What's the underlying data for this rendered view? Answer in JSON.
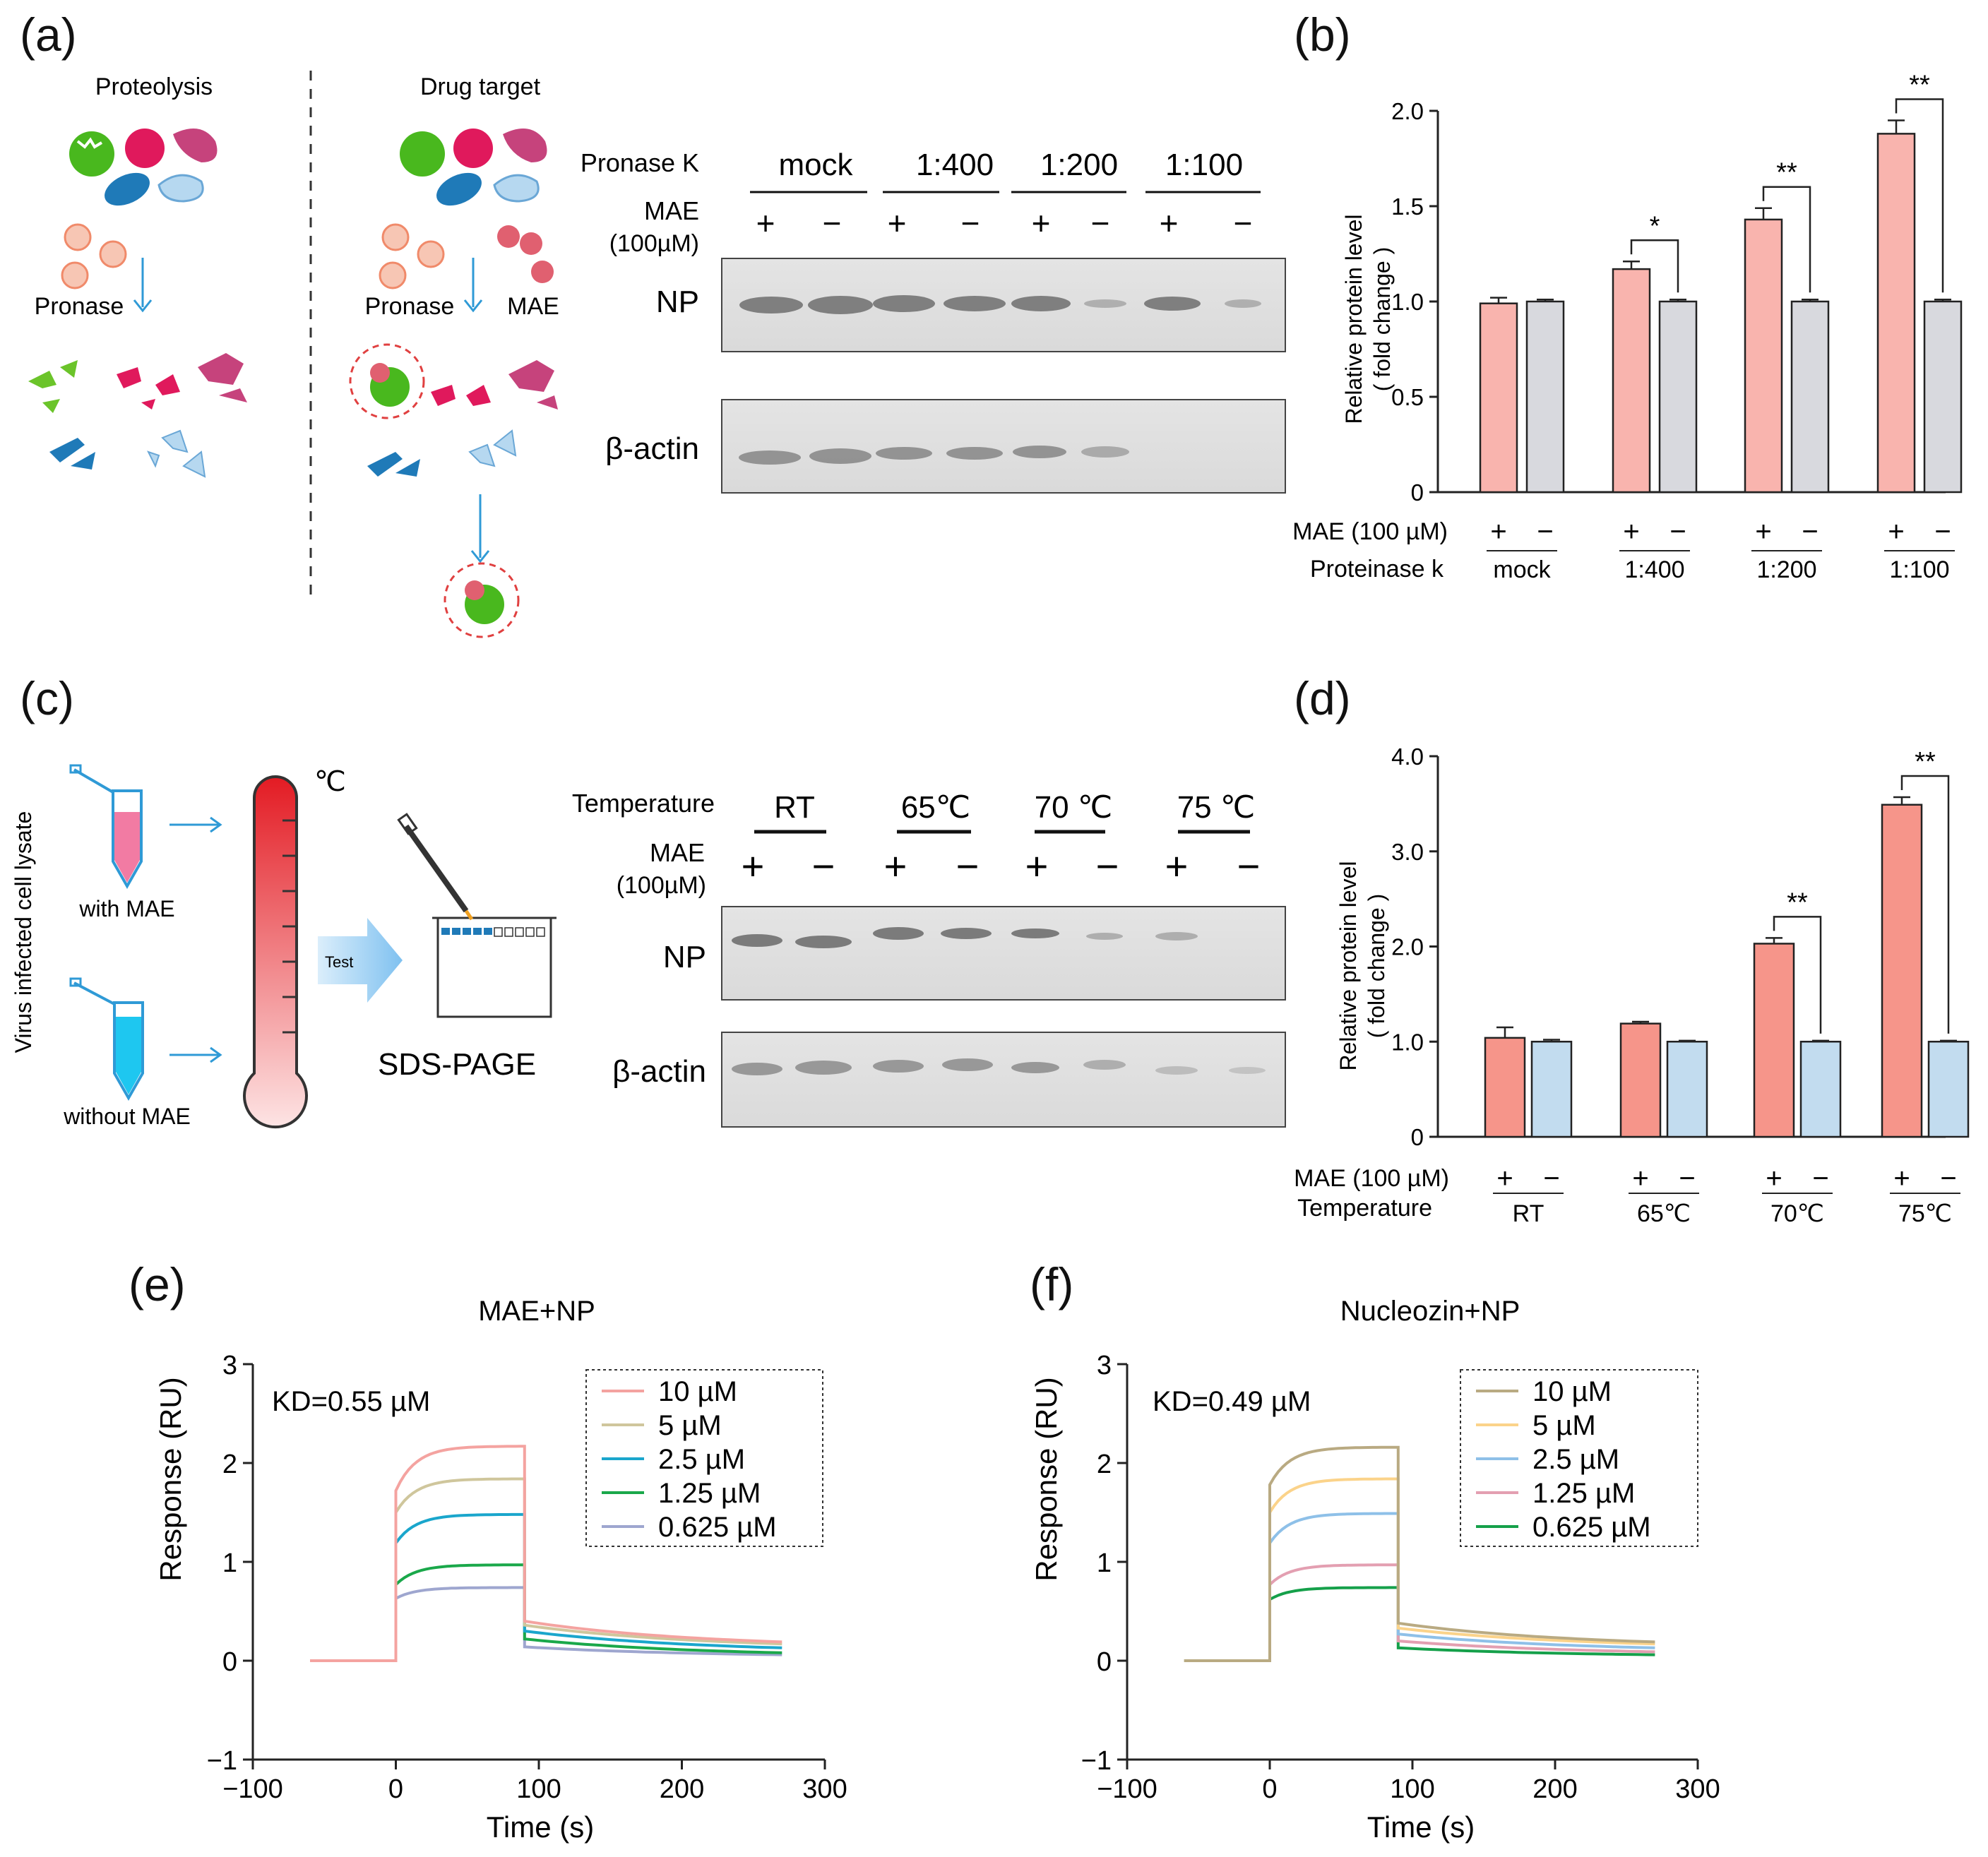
{
  "figure": {
    "panel_labels": [
      "(a)",
      "(b)",
      "(c)",
      "(d)",
      "(e)",
      "(f)"
    ]
  },
  "panel_a": {
    "proteolysis_title": "Proteolysis",
    "drug_target_title": "Drug target",
    "pronase_label_1": "Pronase",
    "pronase_label_2": "Pronase",
    "mae_label": "MAE"
  },
  "blot_a": {
    "row_pronase": "Pronase K",
    "row_mae": "MAE",
    "row_mae_conc": "(100µM)",
    "groups": [
      "mock",
      "1:400",
      "1:200",
      "1:100"
    ],
    "signs": [
      "+",
      "−",
      "+",
      "−",
      "+",
      "−",
      "+",
      "−"
    ],
    "band_np": "NP",
    "band_actin": "β-actin"
  },
  "panel_c": {
    "ylabel": "Virus infected cell lysate",
    "with": "with MAE",
    "without": "without MAE",
    "celsius": "℃",
    "test": "Test",
    "sds": "SDS-PAGE"
  },
  "blot_c": {
    "row_temp": "Temperature",
    "row_mae": "MAE",
    "row_mae_conc": "(100µM)",
    "groups": [
      "RT",
      "65℃",
      "70 ℃",
      "75 ℃"
    ],
    "signs": [
      "+",
      "−",
      "+",
      "−",
      "+",
      "−",
      "+",
      "−"
    ],
    "band_np": "NP",
    "band_actin": "β-actin"
  },
  "colors": {
    "pink_bar": "#f9b4ae",
    "gray_bar": "#d8d9de",
    "salmon_bar": "#f6958a",
    "blue_bar": "#c2dcef"
  },
  "chart_data": [
    {
      "id": "b",
      "type": "bar",
      "ylabel": "Relative protein level",
      "ylabel2": "( fold change )",
      "ylim": [
        0,
        2.0
      ],
      "yticks": [
        0,
        0.5,
        1.0,
        1.5,
        2.0
      ],
      "ytick_labels": [
        "0",
        "0.5",
        "1.0",
        "1.5",
        "2.0"
      ],
      "row1_label": "MAE (100 µM)",
      "row2_label": "Proteinase k",
      "categories": [
        "mock",
        "1:400",
        "1:200",
        "1:100"
      ],
      "signs": [
        "+",
        "−"
      ],
      "series": [
        {
          "name": "MAE +",
          "values": [
            0.99,
            1.17,
            1.43,
            1.88
          ],
          "errors": [
            0.03,
            0.04,
            0.06,
            0.07
          ]
        },
        {
          "name": "MAE −",
          "values": [
            1.0,
            1.0,
            1.0,
            1.0
          ],
          "errors": [
            0.01,
            0.01,
            0.01,
            0.01
          ]
        }
      ],
      "significance": [
        "",
        "*",
        "**",
        "**"
      ]
    },
    {
      "id": "d",
      "type": "bar",
      "ylabel": "Relative protein level",
      "ylabel2": "( fold change )",
      "ylim": [
        0,
        4.0
      ],
      "yticks": [
        0,
        1.0,
        2.0,
        3.0,
        4.0
      ],
      "ytick_labels": [
        "0",
        "1.0",
        "2.0",
        "3.0",
        "4.0"
      ],
      "row1_label": "MAE (100 µM)",
      "row2_label": "Temperature",
      "categories": [
        "RT",
        "65℃",
        "70℃",
        "75℃"
      ],
      "signs": [
        "+",
        "−"
      ],
      "series": [
        {
          "name": "MAE +",
          "values": [
            1.04,
            1.19,
            2.03,
            3.49
          ],
          "errors": [
            0.11,
            0.02,
            0.06,
            0.08
          ]
        },
        {
          "name": "MAE −",
          "values": [
            1.0,
            1.0,
            1.0,
            1.0
          ],
          "errors": [
            0.02,
            0.01,
            0.01,
            0.01
          ]
        }
      ],
      "significance": [
        "",
        "",
        "**",
        "**"
      ]
    },
    {
      "id": "e",
      "type": "line",
      "title": "MAE+NP",
      "annotation": "KD=0.55 µM",
      "xlabel": "Time (s)",
      "ylabel": "Response (RU)",
      "xlim": [
        -100,
        300
      ],
      "ylim": [
        -1,
        3
      ],
      "xticks": [
        -100,
        0,
        100,
        200,
        300
      ],
      "xtick_labels": [
        "−100",
        "0",
        "100",
        "200",
        "300"
      ],
      "yticks": [
        -1,
        0,
        1,
        2,
        3
      ],
      "ytick_labels": [
        "−1",
        "0",
        "1",
        "2",
        "3"
      ],
      "series": [
        {
          "name": "10 µM",
          "color": "#f4a3a0",
          "start": 1.72,
          "plateau": 2.17,
          "end_dissociation": 0.4,
          "final": 0.19
        },
        {
          "name": "5 µM",
          "color": "#cfc69c",
          "start": 1.5,
          "plateau": 1.84,
          "end_dissociation": 0.36,
          "final": 0.17
        },
        {
          "name": "2.5 µM",
          "color": "#1aa6cc",
          "start": 1.19,
          "plateau": 1.48,
          "end_dissociation": 0.3,
          "final": 0.13
        },
        {
          "name": "1.25 µM",
          "color": "#1aa84a",
          "start": 0.77,
          "plateau": 0.97,
          "end_dissociation": 0.22,
          "final": 0.08
        },
        {
          "name": "0.625 µM",
          "color": "#9ea6cf",
          "start": 0.63,
          "plateau": 0.74,
          "end_dissociation": 0.14,
          "final": 0.06
        }
      ]
    },
    {
      "id": "f",
      "type": "line",
      "title": "Nucleozin+NP",
      "annotation": "KD=0.49 µM",
      "xlabel": "Time (s)",
      "ylabel": "Response (RU)",
      "xlim": [
        -100,
        300
      ],
      "ylim": [
        -1,
        3
      ],
      "xticks": [
        -100,
        0,
        100,
        200,
        300
      ],
      "xtick_labels": [
        "−100",
        "0",
        "100",
        "200",
        "300"
      ],
      "yticks": [
        -1,
        0,
        1,
        2,
        3
      ],
      "ytick_labels": [
        "−1",
        "0",
        "1",
        "2",
        "3"
      ],
      "series": [
        {
          "name": "10 µM",
          "color": "#b9aa82",
          "start": 1.78,
          "plateau": 2.16,
          "end_dissociation": 0.38,
          "final": 0.19
        },
        {
          "name": "5 µM",
          "color": "#fbd38a",
          "start": 1.5,
          "plateau": 1.84,
          "end_dissociation": 0.33,
          "final": 0.17
        },
        {
          "name": "2.5 µM",
          "color": "#8ec0e8",
          "start": 1.19,
          "plateau": 1.49,
          "end_dissociation": 0.27,
          "final": 0.13
        },
        {
          "name": "1.25 µM",
          "color": "#e39fb1",
          "start": 0.77,
          "plateau": 0.97,
          "end_dissociation": 0.2,
          "final": 0.09
        },
        {
          "name": "0.625 µM",
          "color": "#15a04a",
          "start": 0.62,
          "plateau": 0.74,
          "end_dissociation": 0.13,
          "final": 0.06
        }
      ]
    }
  ]
}
